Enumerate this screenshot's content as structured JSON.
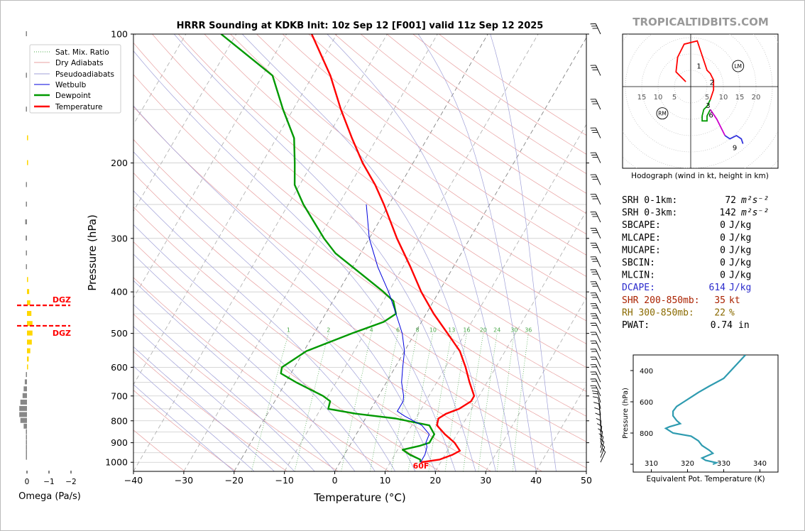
{
  "title": "HRRR Sounding at KDKB Init: 10z Sep 12 [F001] valid 11z Sep 12 2025",
  "watermark": "TROPICALTIDBITS.COM",
  "colors": {
    "temperature": "#ff0000",
    "dewpoint": "#009900",
    "wetbulb": "#0000dd",
    "dry_adiabat": "#e8a0a0",
    "pseudoadiabat": "#a0a0d8",
    "mixing_ratio": "#4aa84a",
    "dgz": "#ff0000",
    "omega_pos": "#ffd700",
    "omega_neg": "#888888",
    "dcape": "#2b2bcc",
    "shr": "#aa2200",
    "rh": "#8a6a00",
    "theta_e": "#2e9bb0",
    "watermark": "#999999"
  },
  "chart_data": [
    {
      "id": "skewt",
      "type": "line",
      "xlabel": "Temperature (°C)",
      "ylabel": "Pressure (hPa)",
      "xlim": [
        -40,
        50
      ],
      "ylim": [
        1050,
        100
      ],
      "yscale": "log",
      "x_ticks": [
        "−40",
        "−30",
        "−20",
        "−10",
        "0",
        "10",
        "20",
        "30",
        "40",
        "50"
      ],
      "y_ticks": [
        100,
        200,
        300,
        400,
        500,
        600,
        700,
        800,
        900,
        1000
      ],
      "grid": true,
      "surface_label": "60F",
      "legend": {
        "placement": "top-left",
        "entries": [
          "Sat. Mix. Ratio",
          "Dry Adiabats",
          "Pseudoadiabats",
          "Wetbulb",
          "Dewpoint",
          "Temperature"
        ]
      },
      "mixing_ratio_labels": [
        "1",
        "2",
        "4",
        "6",
        "8",
        "10",
        "13",
        "16",
        "20",
        "24",
        "30",
        "36"
      ],
      "series": [
        {
          "name": "Temperature",
          "points": [
            [
              1000,
              16.1
            ],
            [
              985,
              19.5
            ],
            [
              960,
              21.5
            ],
            [
              940,
              22.5
            ],
            [
              900,
              20.5
            ],
            [
              860,
              17.6
            ],
            [
              820,
              15.0
            ],
            [
              790,
              14.5
            ],
            [
              770,
              15.5
            ],
            [
              750,
              17.5
            ],
            [
              720,
              19.0
            ],
            [
              700,
              19.0
            ],
            [
              650,
              16.5
            ],
            [
              600,
              14.0
            ],
            [
              550,
              11.0
            ],
            [
              500,
              6.5
            ],
            [
              450,
              1.5
            ],
            [
              400,
              -3.5
            ],
            [
              350,
              -8.5
            ],
            [
              300,
              -14.5
            ],
            [
              250,
              -21.0
            ],
            [
              225,
              -25.0
            ],
            [
              200,
              -30.0
            ],
            [
              175,
              -35.0
            ],
            [
              150,
              -40.5
            ],
            [
              125,
              -46.5
            ],
            [
              100,
              -55.0
            ]
          ]
        },
        {
          "name": "Dewpoint",
          "points": [
            [
              1000,
              16.0
            ],
            [
              985,
              15.6
            ],
            [
              960,
              13.0
            ],
            [
              935,
              11.0
            ],
            [
              915,
              14.0
            ],
            [
              900,
              15.5
            ],
            [
              860,
              15.5
            ],
            [
              820,
              13.5
            ],
            [
              790,
              6.0
            ],
            [
              770,
              -2.5
            ],
            [
              750,
              -8.5
            ],
            [
              720,
              -9.0
            ],
            [
              700,
              -11.0
            ],
            [
              650,
              -18.0
            ],
            [
              620,
              -22.0
            ],
            [
              600,
              -22.5
            ],
            [
              550,
              -19.5
            ],
            [
              500,
              -12.5
            ],
            [
              470,
              -7.5
            ],
            [
              450,
              -6.0
            ],
            [
              420,
              -8.0
            ],
            [
              400,
              -11.0
            ],
            [
              350,
              -20.0
            ],
            [
              325,
              -25.0
            ],
            [
              300,
              -29.0
            ],
            [
              250,
              -37.0
            ],
            [
              225,
              -41.0
            ],
            [
              200,
              -43.5
            ],
            [
              175,
              -46.5
            ],
            [
              150,
              -52.0
            ],
            [
              125,
              -58.0
            ],
            [
              100,
              -73.0
            ]
          ]
        },
        {
          "name": "Wetbulb",
          "points": [
            [
              1000,
              16.0
            ],
            [
              960,
              16.0
            ],
            [
              920,
              15.5
            ],
            [
              900,
              14.8
            ],
            [
              860,
              14.5
            ],
            [
              820,
              12.0
            ],
            [
              780,
              7.5
            ],
            [
              760,
              5.5
            ],
            [
              720,
              5.5
            ],
            [
              700,
              5.0
            ],
            [
              650,
              3.0
            ],
            [
              600,
              1.5
            ],
            [
              550,
              0.0
            ],
            [
              500,
              -2.5
            ],
            [
              450,
              -6.0
            ],
            [
              400,
              -10.0
            ],
            [
              350,
              -15.0
            ],
            [
              300,
              -20.0
            ],
            [
              250,
              -24.5
            ]
          ]
        }
      ]
    },
    {
      "id": "omega",
      "type": "bar",
      "xlabel": "Omega (Pa/s)",
      "x_ticks": [
        "0",
        "−1",
        "−2"
      ],
      "dgz_label": "DGZ",
      "dgz_levels": [
        430,
        480
      ],
      "values": [
        [
          100,
          0.05
        ],
        [
          125,
          0.05
        ],
        [
          150,
          0.05
        ],
        [
          175,
          -0.05
        ],
        [
          200,
          -0.05
        ],
        [
          225,
          0.03
        ],
        [
          250,
          0.05
        ],
        [
          275,
          0.08
        ],
        [
          300,
          0.06
        ],
        [
          325,
          0.05
        ],
        [
          350,
          0.03
        ],
        [
          375,
          -0.05
        ],
        [
          400,
          -0.1
        ],
        [
          425,
          -0.15
        ],
        [
          450,
          -0.2
        ],
        [
          475,
          -0.25
        ],
        [
          500,
          -0.25
        ],
        [
          525,
          -0.22
        ],
        [
          550,
          -0.15
        ],
        [
          575,
          -0.08
        ],
        [
          600,
          -0.05
        ],
        [
          625,
          0.05
        ],
        [
          650,
          0.1
        ],
        [
          675,
          0.15
        ],
        [
          700,
          0.2
        ],
        [
          725,
          0.3
        ],
        [
          750,
          0.35
        ],
        [
          775,
          0.35
        ],
        [
          800,
          0.3
        ],
        [
          825,
          0.15
        ],
        [
          850,
          0.05
        ],
        [
          875,
          0.03
        ],
        [
          900,
          0.02
        ],
        [
          925,
          0.02
        ],
        [
          950,
          0.02
        ],
        [
          975,
          0.01
        ]
      ]
    },
    {
      "id": "hodograph",
      "type": "line",
      "caption": "Hodograph (wind in kt, height in km)",
      "ring_labels": [
        "15",
        "10",
        "5",
        "5",
        "10",
        "15",
        "20"
      ],
      "markers": [
        "LM",
        "RM"
      ],
      "height_labels": [
        "1",
        "2",
        "3",
        "6",
        "9"
      ],
      "segments": [
        {
          "color": "#ff0000",
          "points": [
            [
              -1.5,
              1.5
            ],
            [
              -4.5,
              4.5
            ],
            [
              -4,
              9
            ],
            [
              -2,
              13
            ],
            [
              2,
              14
            ],
            [
              3,
              11
            ],
            [
              5,
              5
            ],
            [
              6,
              4
            ],
            [
              7,
              2
            ],
            [
              7,
              -1
            ],
            [
              6,
              -4
            ]
          ]
        },
        {
          "color": "#009900",
          "points": [
            [
              6,
              -4
            ],
            [
              5,
              -6
            ],
            [
              4,
              -7
            ],
            [
              3.5,
              -9
            ],
            [
              3.5,
              -10.5
            ],
            [
              5,
              -10.5
            ],
            [
              5,
              -9
            ],
            [
              6,
              -7
            ]
          ]
        },
        {
          "color": "#cc00cc",
          "points": [
            [
              6,
              -7
            ],
            [
              8,
              -10
            ],
            [
              9.5,
              -13
            ],
            [
              10.5,
              -15
            ]
          ]
        },
        {
          "color": "#3333dd",
          "points": [
            [
              10.5,
              -15
            ],
            [
              12,
              -16
            ],
            [
              14,
              -15
            ],
            [
              15.5,
              -16
            ],
            [
              16,
              -17.5
            ]
          ]
        }
      ]
    },
    {
      "id": "theta_e",
      "type": "line",
      "xlabel": "Equivalent Pot. Temperature (K)",
      "ylabel": "Pressure (hPa)",
      "xlim": [
        305,
        345
      ],
      "ylim": [
        1050,
        300
      ],
      "x_ticks": [
        310,
        320,
        330,
        340
      ],
      "y_ticks": [
        400,
        600,
        800
      ],
      "points": [
        [
          1000,
          327
        ],
        [
          990,
          328
        ],
        [
          975,
          325
        ],
        [
          960,
          324
        ],
        [
          950,
          325
        ],
        [
          930,
          327
        ],
        [
          910,
          326
        ],
        [
          880,
          324
        ],
        [
          850,
          323
        ],
        [
          820,
          321
        ],
        [
          800,
          316
        ],
        [
          770,
          314
        ],
        [
          760,
          315
        ],
        [
          740,
          318
        ],
        [
          720,
          317
        ],
        [
          690,
          316
        ],
        [
          660,
          316
        ],
        [
          630,
          317
        ],
        [
          600,
          319
        ],
        [
          570,
          321
        ],
        [
          540,
          323
        ],
        [
          500,
          326
        ],
        [
          450,
          330
        ],
        [
          400,
          332
        ],
        [
          350,
          334
        ],
        [
          300,
          336
        ]
      ]
    }
  ],
  "stats": [
    {
      "label": "SRH 0-1km:",
      "value": "72",
      "unit": "m²s⁻²",
      "color": "#000000"
    },
    {
      "label": "SRH 0-3km:",
      "value": "142",
      "unit": "m²s⁻²",
      "color": "#000000"
    },
    {
      "label": "SBCAPE:",
      "value": "0",
      "unit": "J/kg",
      "color": "#000000"
    },
    {
      "label": "MLCAPE:",
      "value": "0",
      "unit": "J/kg",
      "color": "#000000"
    },
    {
      "label": "MUCAPE:",
      "value": "0",
      "unit": "J/kg",
      "color": "#000000"
    },
    {
      "label": "SBCIN:",
      "value": "0",
      "unit": "J/kg",
      "color": "#000000"
    },
    {
      "label": "MLCIN:",
      "value": "0",
      "unit": "J/kg",
      "color": "#000000"
    },
    {
      "label": "DCAPE:",
      "value": "614",
      "unit": "J/kg",
      "color": "#2b2bcc"
    },
    {
      "label": "SHR 200-850mb:",
      "value": "35",
      "unit": "kt",
      "color": "#aa2200"
    },
    {
      "label": "RH 300-850mb:",
      "value": "22",
      "unit": "%",
      "color": "#8a6a00"
    },
    {
      "label": "PWAT:",
      "value": "0.74",
      "unit": "in",
      "color": "#000000"
    }
  ]
}
